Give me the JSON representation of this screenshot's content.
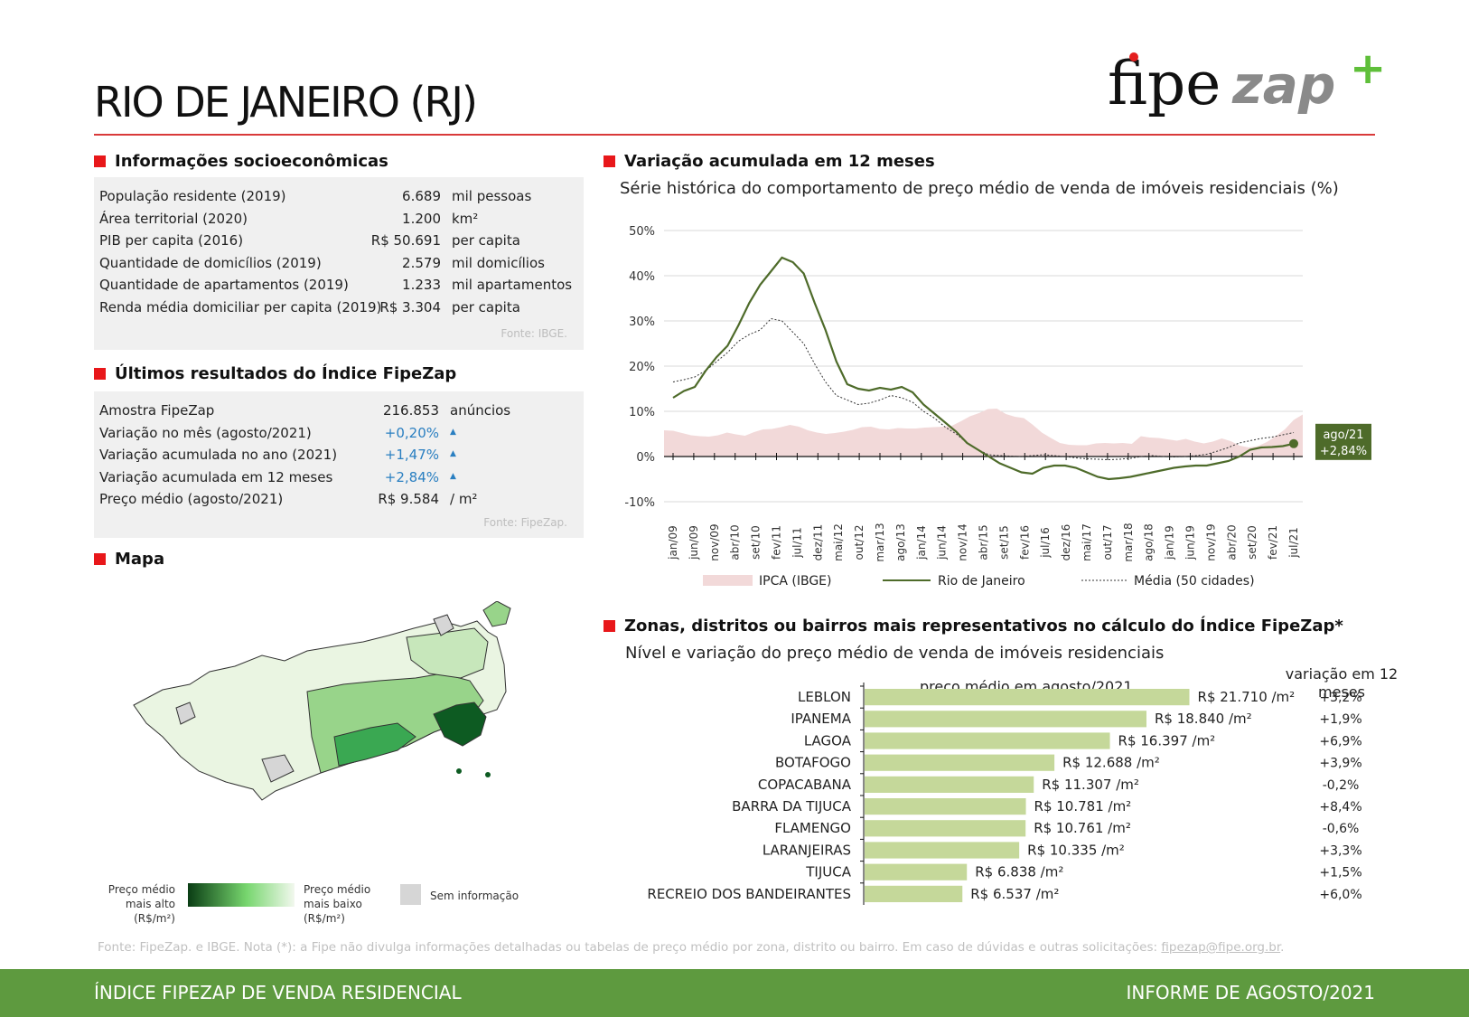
{
  "header": {
    "title": "RIO DE JANEIRO (RJ)",
    "logo": {
      "fipe": "fipe",
      "zap": "zap",
      "plus": "+"
    }
  },
  "socio": {
    "heading": "Informações socioeconômicas",
    "rows": [
      {
        "label": "População residente (2019)",
        "value": "6.689",
        "unit": "mil pessoas"
      },
      {
        "label": "Área territorial (2020)",
        "value": "1.200",
        "unit": "km²"
      },
      {
        "label": "PIB per capita (2016)",
        "value": "R$ 50.691",
        "unit": "per capita"
      },
      {
        "label": "Quantidade de domicílios (2019)",
        "value": "2.579",
        "unit": "mil domicílios"
      },
      {
        "label": "Quantidade de apartamentos (2019)",
        "value": "1.233",
        "unit": "mil apartamentos"
      },
      {
        "label": "Renda média domiciliar per capita (2019)",
        "value": "R$ 3.304",
        "unit": "per capita"
      }
    ],
    "source": "Fonte: IBGE."
  },
  "results": {
    "heading": "Últimos resultados do Índice FipeZap",
    "rows": [
      {
        "label": "Amostra FipeZap",
        "value": "216.853",
        "unit": "anúncios"
      },
      {
        "label": "Variação no mês (agosto/2021)",
        "value": "+0,20%",
        "unit": "▲"
      },
      {
        "label": "Variação acumulada no ano (2021)",
        "value": "+1,47%",
        "unit": "▲"
      },
      {
        "label": "Variação acumulada em 12 meses",
        "value": "+2,84%",
        "unit": "▲"
      },
      {
        "label": "Preço médio (agosto/2021)",
        "value": "R$ 9.584",
        "unit": "/ m²"
      }
    ],
    "source": "Fonte: FipeZap."
  },
  "map": {
    "heading": "Mapa",
    "legend_high": "Preço médio mais alto (R$/m²)",
    "legend_low": "Preço médio mais baixo (R$/m²)",
    "legend_na": "Sem informação",
    "colors": {
      "high": "#0a3d14",
      "low": "#f2f8ee",
      "na": "#d6d6d6"
    }
  },
  "variation": {
    "heading": "Variação acumulada em 12 meses",
    "subtitle": "Série histórica do comportamento de preço médio de venda de imóveis residenciais (%)"
  },
  "zones": {
    "heading": "Zonas, distritos ou bairros mais representativos no cálculo do Índice FipeZap*",
    "subtitle": "Nível e variação do preço médio de venda de imóveis residenciais",
    "price_header": "preço médio em agosto/2021",
    "var_header": "variação em 12 meses"
  },
  "chart_data": [
    {
      "type": "line",
      "ylim": [
        -10,
        50
      ],
      "yticks": [
        "50%",
        "40%",
        "30%",
        "20%",
        "10%",
        "0%",
        "-10%"
      ],
      "x_tick_labels": [
        "jan/09",
        "jun/09",
        "nov/09",
        "abr/10",
        "set/10",
        "fev/11",
        "jul/11",
        "dez/11",
        "mai/12",
        "out/12",
        "mar/13",
        "ago/13",
        "jan/14",
        "jun/14",
        "nov/14",
        "abr/15",
        "set/15",
        "fev/16",
        "jul/16",
        "dez/16",
        "mai/17",
        "out/17",
        "mar/18",
        "ago/18",
        "jan/19",
        "jun/19",
        "nov/19",
        "abr/20",
        "set/20",
        "fev/21",
        "jul/21"
      ],
      "annotation": {
        "label": "ago/21",
        "value": "+2,84%"
      },
      "series": [
        {
          "name": "IPCA (IBGE)",
          "style": "area",
          "color": "#f2d9d9",
          "values": [
            5.8,
            5.7,
            5.2,
            4.7,
            4.5,
            4.4,
            4.7,
            5.3,
            4.9,
            4.6,
            5.4,
            6.0,
            6.1,
            6.5,
            7.0,
            6.6,
            5.8,
            5.3,
            5.0,
            5.2,
            5.5,
            5.9,
            6.5,
            6.6,
            6.1,
            6.0,
            6.3,
            6.2,
            6.2,
            6.4,
            6.5,
            6.6,
            6.8,
            7.8,
            8.9,
            9.6,
            10.5,
            10.6,
            9.4,
            8.8,
            8.5,
            7.0,
            5.3,
            4.1,
            3.0,
            2.6,
            2.5,
            2.5,
            2.9,
            3.0,
            2.9,
            3.0,
            2.8,
            4.5,
            4.2,
            4.1,
            3.8,
            3.5,
            3.9,
            3.3,
            2.9,
            3.3,
            4.0,
            3.4,
            2.4,
            2.0,
            2.3,
            3.2,
            4.5,
            6.0,
            8.1,
            9.3
          ]
        },
        {
          "name": "Rio de Janeiro",
          "style": "line",
          "color": "#4e6b2a",
          "values": [
            13,
            14.5,
            15.4,
            19,
            22,
            24.5,
            29,
            34,
            38,
            41,
            44,
            43,
            40.5,
            34,
            28,
            21,
            16,
            15,
            14.6,
            15.2,
            14.8,
            15.4,
            14.2,
            11.5,
            9.5,
            7.5,
            5.5,
            3.0,
            1.5,
            0.0,
            -1.5,
            -2.5,
            -3.5,
            -3.8,
            -2.5,
            -2.0,
            -2.0,
            -2.5,
            -3.5,
            -4.5,
            -5.0,
            -4.8,
            -4.5,
            -4.0,
            -3.5,
            -3.0,
            -2.5,
            -2.2,
            -2.0,
            -2.0,
            -1.5,
            -1.0,
            0.0,
            1.5,
            2.0,
            2.1,
            2.3,
            2.84
          ]
        },
        {
          "name": "Média (50 cidades)",
          "style": "dotted",
          "color": "#333333",
          "values": [
            16.5,
            17.0,
            17.6,
            19.0,
            21.0,
            23.0,
            25.5,
            27.0,
            28.0,
            30.5,
            30.0,
            27.5,
            25.0,
            20.5,
            16.5,
            13.5,
            12.5,
            11.5,
            11.8,
            12.5,
            13.5,
            13.0,
            12.0,
            10.0,
            8.5,
            6.5,
            5.0,
            3.0,
            1.5,
            0.4,
            0.2,
            0.1,
            0.0,
            0.2,
            0.4,
            0.2,
            0.0,
            -0.3,
            -0.5,
            -0.6,
            -0.7,
            -0.6,
            -0.4,
            0.0,
            0.2,
            0.0,
            -0.1,
            0.0,
            0.2,
            0.5,
            1.2,
            2.0,
            3.0,
            3.5,
            4.0,
            4.3,
            4.8,
            5.3
          ]
        }
      ]
    },
    {
      "type": "bar",
      "orientation": "horizontal",
      "xlim": [
        0,
        25000
      ],
      "categories": [
        "LEBLON",
        "IPANEMA",
        "LAGOA",
        "BOTAFOGO",
        "COPACABANA",
        "BARRA DA TIJUCA",
        "FLAMENGO",
        "LARANJEIRAS",
        "TIJUCA",
        "RECREIO DOS BANDEIRANTES"
      ],
      "values": [
        21710,
        18840,
        16397,
        12688,
        11307,
        10781,
        10761,
        10335,
        6838,
        6537
      ],
      "value_labels": [
        "R$ 21.710 /m²",
        "R$ 18.840 /m²",
        "R$ 16.397 /m²",
        "R$ 12.688 /m²",
        "R$ 11.307 /m²",
        "R$ 10.781 /m²",
        "R$ 10.761 /m²",
        "R$ 10.335 /m²",
        "R$ 6.838 /m²",
        "R$ 6.537 /m²"
      ],
      "variation_12m": [
        "+3,2%",
        "+1,9%",
        "+6,9%",
        "+3,9%",
        "-0,2%",
        "+8,4%",
        "-0,6%",
        "+3,3%",
        "+1,5%",
        "+6,0%"
      ],
      "color": "#c5d89a"
    }
  ],
  "footnote": {
    "text": "Fonte: FipeZap. e IBGE. Nota (*): a Fipe não divulga informações detalhadas ou tabelas de preço médio por zona, distrito ou bairro. Em caso de dúvidas e outras solicitações: ",
    "email": "fipezap@fipe.org.br",
    "end": "."
  },
  "footer": {
    "left": "ÍNDICE FIPEZAP DE VENDA RESIDENCIAL",
    "right": "INFORME DE AGOSTO/2021"
  }
}
